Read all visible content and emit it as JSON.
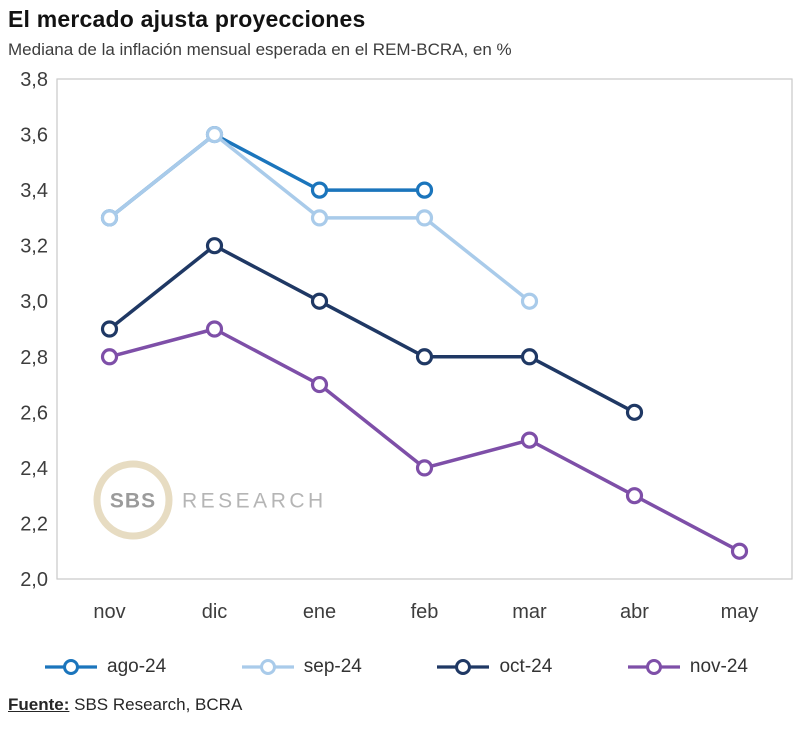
{
  "header": {
    "title": "El mercado ajusta proyecciones",
    "subtitle": "Mediana de la inflación mensual esperada en el REM-BCRA, en %"
  },
  "watermark": {
    "badge": "SBS",
    "label": "RESEARCH",
    "ring_color": "#e7dcc2",
    "badge_text_color": "#9b9b9b",
    "label_text_color": "#b5b5b5"
  },
  "footer": {
    "source_label": "Fuente:",
    "source_text": " SBS Research, BCRA"
  },
  "chart_data": {
    "type": "line",
    "title": "El mercado ajusta proyecciones",
    "subtitle": "Mediana de la inflación mensual esperada en el REM-BCRA, en %",
    "categories": [
      "nov",
      "dic",
      "ene",
      "feb",
      "mar",
      "abr",
      "may"
    ],
    "series": [
      {
        "name": "ago-24",
        "color": "#1b75bc",
        "values": [
          3.3,
          3.6,
          3.4,
          3.4,
          null,
          null,
          null
        ]
      },
      {
        "name": "sep-24",
        "color": "#a9cbea",
        "values": [
          3.3,
          3.6,
          3.3,
          3.3,
          3.0,
          null,
          null
        ]
      },
      {
        "name": "oct-24",
        "color": "#1f3864",
        "values": [
          2.9,
          3.2,
          3.0,
          2.8,
          2.8,
          2.6,
          null
        ]
      },
      {
        "name": "nov-24",
        "color": "#7e4fa8",
        "values": [
          2.8,
          2.9,
          2.7,
          2.4,
          2.5,
          2.3,
          2.1
        ]
      }
    ],
    "ylim": [
      2.0,
      3.8
    ],
    "ytick_step": 0.2,
    "ytick_labels": [
      "2,0",
      "2,2",
      "2,4",
      "2,6",
      "2,8",
      "3,0",
      "3,2",
      "3,4",
      "3,6",
      "3,8"
    ],
    "xlabel": "",
    "ylabel": "",
    "grid": false,
    "legend_position": "bottom",
    "axis_text_color": "#3d3d3d",
    "plot_border_color": "#c9c9c9"
  }
}
